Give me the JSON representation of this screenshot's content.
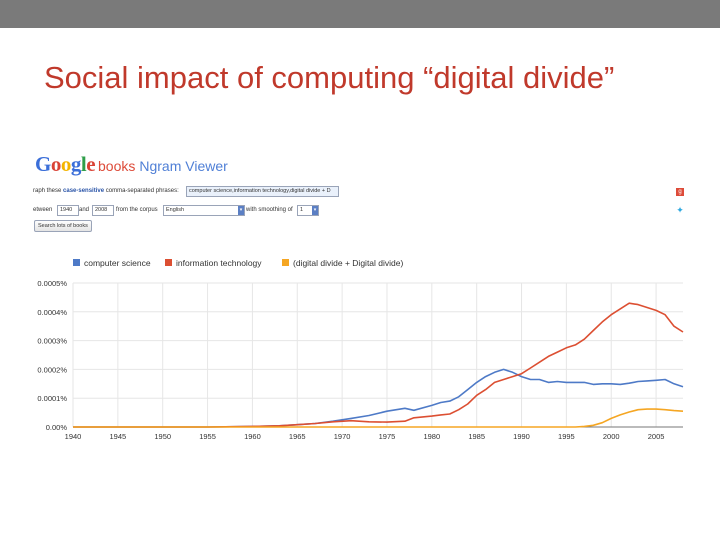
{
  "slide": {
    "title": "Social impact of computing “digital divide”"
  },
  "ngram": {
    "logo": {
      "google": "Google",
      "books": "books",
      "viewer": "Ngram Viewer"
    },
    "form": {
      "graph_label_pre": "raph these",
      "graph_label_bold": "case-sensitive",
      "graph_label_post": "comma-separated phrases:",
      "phrases_value": "computer science,information technology,digital divide + D",
      "between_label": "etween",
      "year_start": "1940",
      "and_label": "and",
      "year_end": "2008",
      "corpus_label": "from the corpus",
      "corpus_value": "English",
      "smoothing_label": "with smoothing of",
      "smoothing_value": "1",
      "search_button": "Search lots of books"
    },
    "share_icons": [
      "google-plus-icon",
      "twitter-icon"
    ]
  },
  "chart_data": {
    "type": "line",
    "x_range": [
      1940,
      2008
    ],
    "y_range": [
      0,
      0.0005
    ],
    "y_unit": "%",
    "y_ticks": [
      "0.00%",
      "0.0001%",
      "0.0002%",
      "0.0003%",
      "0.0004%",
      "0.0005%"
    ],
    "x_ticks": [
      "1940",
      "1945",
      "1950",
      "1955",
      "1960",
      "1965",
      "1970",
      "1975",
      "1980",
      "1985",
      "1990",
      "1995",
      "2000",
      "2005"
    ],
    "grid": true,
    "legend_position": "top",
    "series": [
      {
        "name": "computer science",
        "color": "#4e7ac7",
        "points": [
          [
            1940,
            0
          ],
          [
            1955,
            0
          ],
          [
            1960,
            2e-06
          ],
          [
            1963,
            4e-06
          ],
          [
            1965,
            8e-06
          ],
          [
            1967,
            1.2e-05
          ],
          [
            1969,
            2e-05
          ],
          [
            1971,
            3e-05
          ],
          [
            1973,
            4e-05
          ],
          [
            1975,
            5.5e-05
          ],
          [
            1977,
            6.5e-05
          ],
          [
            1978,
            5.8e-05
          ],
          [
            1980,
            7.5e-05
          ],
          [
            1981,
            8.5e-05
          ],
          [
            1982,
            9e-05
          ],
          [
            1983,
            0.000105
          ],
          [
            1984,
            0.00013
          ],
          [
            1985,
            0.000155
          ],
          [
            1986,
            0.000175
          ],
          [
            1987,
            0.00019
          ],
          [
            1988,
            0.0002
          ],
          [
            1989,
            0.00019
          ],
          [
            1990,
            0.000175
          ],
          [
            1991,
            0.000165
          ],
          [
            1992,
            0.000165
          ],
          [
            1993,
            0.000155
          ],
          [
            1994,
            0.000158
          ],
          [
            1995,
            0.000155
          ],
          [
            1997,
            0.000155
          ],
          [
            1998,
            0.000148
          ],
          [
            1999,
            0.00015
          ],
          [
            2000,
            0.00015
          ],
          [
            2001,
            0.000148
          ],
          [
            2002,
            0.000152
          ],
          [
            2003,
            0.000158
          ],
          [
            2004,
            0.00016
          ],
          [
            2005,
            0.000162
          ],
          [
            2006,
            0.000165
          ],
          [
            2007,
            0.00015
          ],
          [
            2008,
            0.00014
          ]
        ]
      },
      {
        "name": "information technology",
        "color": "#dc4f32",
        "points": [
          [
            1940,
            0
          ],
          [
            1955,
            0
          ],
          [
            1960,
            2e-06
          ],
          [
            1963,
            4e-06
          ],
          [
            1965,
            8e-06
          ],
          [
            1967,
            1.2e-05
          ],
          [
            1969,
            1.8e-05
          ],
          [
            1971,
            2.2e-05
          ],
          [
            1973,
            1.8e-05
          ],
          [
            1975,
            1.7e-05
          ],
          [
            1977,
            2e-05
          ],
          [
            1978,
            3.2e-05
          ],
          [
            1980,
            3.8e-05
          ],
          [
            1981,
            4.2e-05
          ],
          [
            1982,
            4.5e-05
          ],
          [
            1983,
            6e-05
          ],
          [
            1984,
            8e-05
          ],
          [
            1985,
            0.00011
          ],
          [
            1986,
            0.00013
          ],
          [
            1987,
            0.000155
          ],
          [
            1988,
            0.000165
          ],
          [
            1989,
            0.000175
          ],
          [
            1990,
            0.000185
          ],
          [
            1991,
            0.000205
          ],
          [
            1992,
            0.000225
          ],
          [
            1993,
            0.000245
          ],
          [
            1994,
            0.00026
          ],
          [
            1995,
            0.000275
          ],
          [
            1996,
            0.000285
          ],
          [
            1997,
            0.000305
          ],
          [
            1998,
            0.000335
          ],
          [
            1999,
            0.000365
          ],
          [
            2000,
            0.00039
          ],
          [
            2001,
            0.00041
          ],
          [
            2002,
            0.00043
          ],
          [
            2003,
            0.000425
          ],
          [
            2004,
            0.000415
          ],
          [
            2005,
            0.000405
          ],
          [
            2006,
            0.00039
          ],
          [
            2007,
            0.00035
          ],
          [
            2008,
            0.00033
          ]
        ]
      },
      {
        "name": "(digital divide + Digital divide)",
        "color": "#f5a623",
        "points": [
          [
            1940,
            0
          ],
          [
            1996,
            0
          ],
          [
            1997,
            2e-06
          ],
          [
            1998,
            6e-06
          ],
          [
            1999,
            1.5e-05
          ],
          [
            2000,
            3e-05
          ],
          [
            2001,
            4.2e-05
          ],
          [
            2002,
            5.2e-05
          ],
          [
            2003,
            6e-05
          ],
          [
            2004,
            6.2e-05
          ],
          [
            2005,
            6.2e-05
          ],
          [
            2006,
            6e-05
          ],
          [
            2007,
            5.7e-05
          ],
          [
            2008,
            5.5e-05
          ]
        ]
      }
    ]
  }
}
